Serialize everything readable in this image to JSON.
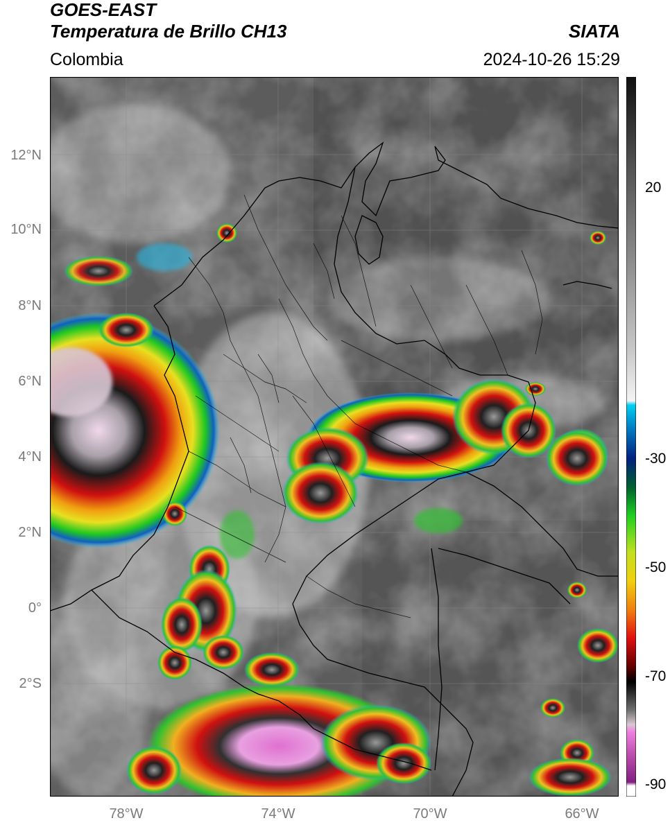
{
  "header": {
    "title_line1": "GOES-EAST",
    "title_line2": "Temperatura de Brillo CH13",
    "org": "SIATA",
    "region": "Colombia",
    "datetime": "2024-10-26 15:29"
  },
  "axes": {
    "lat_labels": [
      "12°N",
      "10°N",
      "8°N",
      "6°N",
      "4°N",
      "2°N",
      "0°",
      "2°S"
    ],
    "lat_values": [
      12,
      10,
      8,
      6,
      4,
      2,
      0,
      -2
    ],
    "lon_labels": [
      "78°W",
      "74°W",
      "70°W",
      "66°W"
    ],
    "lon_values": [
      -78,
      -74,
      -70,
      -66
    ],
    "lon_range": [
      -80,
      -65
    ],
    "lat_range": [
      -5,
      14
    ]
  },
  "colorbar": {
    "tick_labels": [
      "20",
      "-30",
      "-50",
      "-70",
      "-90"
    ],
    "tick_values": [
      20,
      -30,
      -50,
      -70,
      -90
    ],
    "range": [
      -92,
      35
    ]
  },
  "colors": {
    "cold_magenta": "#e060c8",
    "red": "#e01010",
    "green": "#20d020",
    "yellow": "#f0e020",
    "blue": "#1050c0",
    "cyan": "#00c8f0"
  }
}
